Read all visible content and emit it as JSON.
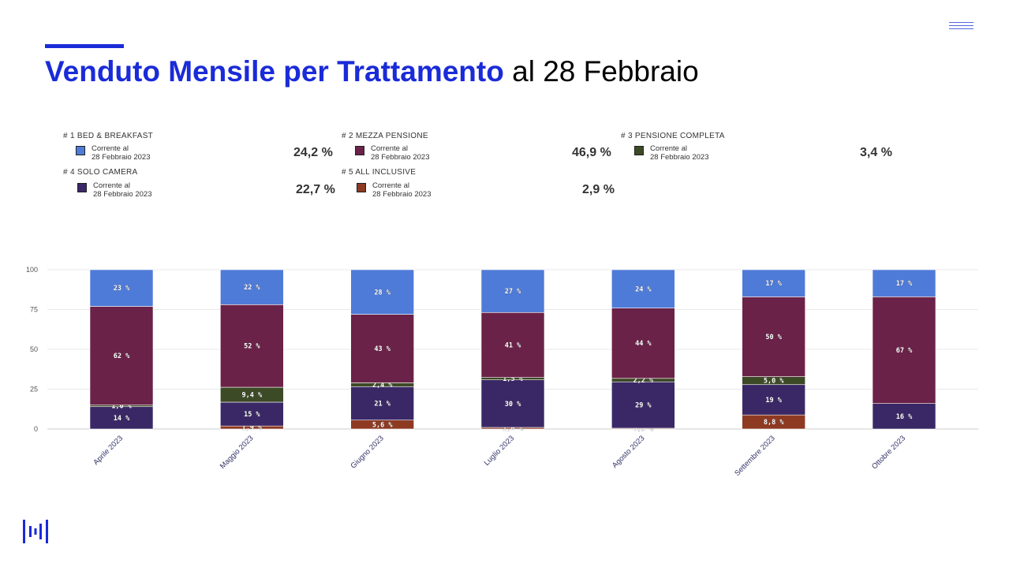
{
  "header": {
    "title_bold": "Venduto Mensile per Trattamento",
    "title_rest": "al 28 Febbraio"
  },
  "legend": [
    {
      "section": "# 1 BED & BREAKFAST",
      "line1": "Corrente al",
      "line2": "28 Febbraio 2023",
      "percent": "24,2 %"
    },
    {
      "section": "# 2 MEZZA PENSIONE",
      "line1": "Corrente al",
      "line2": "28 Febbraio 2023",
      "percent": "46,9 %"
    },
    {
      "section": "# 3 PENSIONE COMPLETA",
      "line1": "Corrente al",
      "line2": "28 Febbraio 2023",
      "percent": "3,4 %"
    },
    {
      "section": "# 4 SOLO CAMERA",
      "line1": "Corrente al",
      "line2": "28 Febbraio 2023",
      "percent": "22,7 %"
    },
    {
      "section": "# 5 ALL INCLUSIVE",
      "line1": "Corrente al",
      "line2": "28 Febbraio 2023",
      "percent": "2,9 %"
    }
  ],
  "colors": {
    "bed_breakfast": "#4f7bd8",
    "mezza_pensione": "#6b2248",
    "pensione_completa": "#3d4a26",
    "solo_camera": "#3a2866",
    "all_inclusive": "#8e3a22",
    "accent": "#1a2bd8"
  },
  "chart_data": {
    "type": "bar",
    "stacked": true,
    "ylim": [
      0,
      100
    ],
    "yticks": [
      0,
      25,
      50,
      75,
      100
    ],
    "grid": true,
    "categories": [
      "Aprile 2023",
      "Maggio 2023",
      "Giugno 2023",
      "Luglio 2023",
      "Agosto 2023",
      "Settembre 2023",
      "Ottobre 2023"
    ],
    "series": [
      {
        "name": "# 5 ALL INCLUSIVE",
        "values": [
          0,
          1.9,
          5.6,
          1.0,
          0.5,
          8.8,
          0
        ],
        "labels": [
          "",
          "1,9 %",
          "5,6 %",
          "1,0 %",
          "0,5 %",
          "8,8 %",
          ""
        ]
      },
      {
        "name": "# 4 SOLO CAMERA",
        "values": [
          14,
          15,
          21,
          30,
          29,
          19,
          16
        ],
        "labels": [
          "14 %",
          "15 %",
          "21 %",
          "30 %",
          "29 %",
          "19 %",
          "16 %"
        ]
      },
      {
        "name": "# 3 PENSIONE COMPLETA",
        "values": [
          1.0,
          9.4,
          2.4,
          1.5,
          2.2,
          5.0,
          0
        ],
        "labels": [
          "1,0 %",
          "9,4 %",
          "2,4 %",
          "1,5 %",
          "2,2 %",
          "5,0 %",
          ""
        ]
      },
      {
        "name": "# 2 MEZZA PENSIONE",
        "values": [
          62,
          52,
          43,
          41,
          44,
          50,
          67
        ],
        "labels": [
          "62 %",
          "52 %",
          "43 %",
          "41 %",
          "44 %",
          "50 %",
          "67 %"
        ]
      },
      {
        "name": "# 1 BED & BREAKFAST",
        "values": [
          23,
          22,
          28,
          27,
          24,
          17,
          17
        ],
        "labels": [
          "23 %",
          "22 %",
          "28 %",
          "27 %",
          "24 %",
          "17 %",
          "17 %"
        ]
      }
    ]
  }
}
